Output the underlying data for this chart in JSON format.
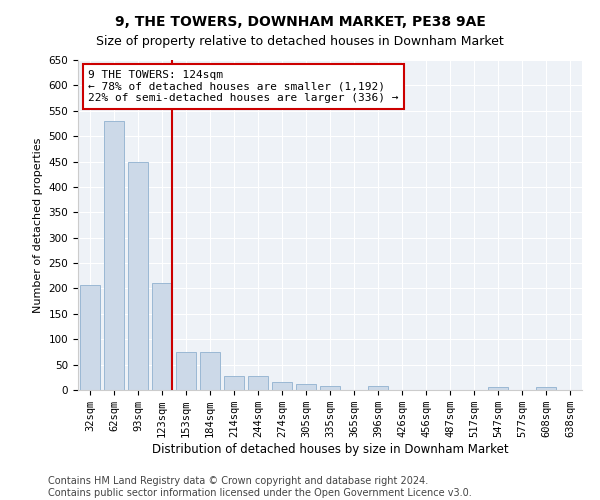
{
  "title": "9, THE TOWERS, DOWNHAM MARKET, PE38 9AE",
  "subtitle": "Size of property relative to detached houses in Downham Market",
  "xlabel": "Distribution of detached houses by size in Downham Market",
  "ylabel": "Number of detached properties",
  "categories": [
    "32sqm",
    "62sqm",
    "93sqm",
    "123sqm",
    "153sqm",
    "184sqm",
    "214sqm",
    "244sqm",
    "274sqm",
    "305sqm",
    "335sqm",
    "365sqm",
    "396sqm",
    "426sqm",
    "456sqm",
    "487sqm",
    "517sqm",
    "547sqm",
    "577sqm",
    "608sqm",
    "638sqm"
  ],
  "values": [
    207,
    530,
    450,
    210,
    75,
    75,
    27,
    27,
    15,
    12,
    8,
    0,
    8,
    0,
    0,
    0,
    0,
    5,
    0,
    5,
    0
  ],
  "bar_color": "#ccd9e8",
  "bar_edge_color": "#9ab8d4",
  "annotation_line1": "9 THE TOWERS: 124sqm",
  "annotation_line2": "← 78% of detached houses are smaller (1,192)",
  "annotation_line3": "22% of semi-detached houses are larger (336) →",
  "annotation_box_color": "#ffffff",
  "annotation_box_edge": "#cc0000",
  "ylim": [
    0,
    650
  ],
  "yticks": [
    0,
    50,
    100,
    150,
    200,
    250,
    300,
    350,
    400,
    450,
    500,
    550,
    600,
    650
  ],
  "vline_color": "#cc0000",
  "vline_x_index": 3.43,
  "footer1": "Contains HM Land Registry data © Crown copyright and database right 2024.",
  "footer2": "Contains public sector information licensed under the Open Government Licence v3.0.",
  "background_color": "#ffffff",
  "plot_bg_color": "#eef2f7",
  "title_fontsize": 10,
  "subtitle_fontsize": 9,
  "xlabel_fontsize": 8.5,
  "ylabel_fontsize": 8,
  "tick_fontsize": 7.5,
  "annotation_fontsize": 8,
  "footer_fontsize": 7
}
